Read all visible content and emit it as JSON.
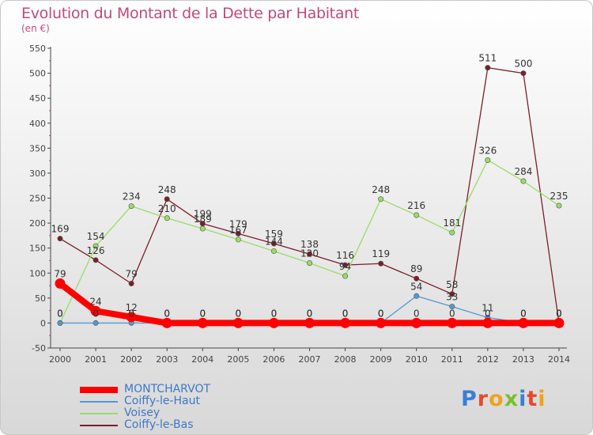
{
  "header": {
    "title": "Evolution du Montant de la Dette par Habitant",
    "subtitle": "(en €)"
  },
  "logo": {
    "text": "Proxiti",
    "colors": [
      "#3a7fd6",
      "#e64a2e",
      "#f0a21c",
      "#7bbf2e",
      "#3a7fd6",
      "#e64a2e",
      "#f0a21c"
    ]
  },
  "chart_data": {
    "type": "line",
    "x": [
      2000,
      2001,
      2002,
      2003,
      2004,
      2005,
      2006,
      2007,
      2008,
      2009,
      2010,
      2011,
      2012,
      2013,
      2014
    ],
    "ylim": [
      -50,
      550
    ],
    "yticks": [
      -50,
      0,
      50,
      100,
      150,
      200,
      250,
      300,
      350,
      400,
      450,
      500,
      550
    ],
    "grid": false,
    "legend": "bottom-left",
    "series": [
      {
        "name": "Coiffy-le-Bas",
        "color": "#7a1f2b",
        "values": [
          169,
          126,
          79,
          248,
          199,
          179,
          159,
          138,
          116,
          119,
          89,
          58,
          511,
          500,
          0
        ]
      },
      {
        "name": "Voisey",
        "color": "#99dd66",
        "values": [
          0,
          154,
          234,
          210,
          189,
          167,
          144,
          120,
          94,
          248,
          216,
          181,
          326,
          284,
          235
        ]
      },
      {
        "name": "Coiffy-le-Haut",
        "color": "#5599cc",
        "values": [
          0,
          0,
          0,
          0,
          0,
          0,
          0,
          0,
          0,
          0,
          54,
          33,
          11,
          0,
          0
        ]
      },
      {
        "name": "MONTCHARVOT",
        "color": "#ff0000",
        "values": [
          79,
          24,
          12,
          0,
          0,
          0,
          0,
          0,
          0,
          0,
          0,
          0,
          0,
          0,
          0
        ]
      }
    ]
  },
  "legend": {
    "items": [
      {
        "label": "MONTCHARVOT",
        "color": "#ff0000"
      },
      {
        "label": "Coiffy-le-Haut",
        "color": "#5599cc"
      },
      {
        "label": "Voisey",
        "color": "#99dd66"
      },
      {
        "label": "Coiffy-le-Bas",
        "color": "#7a1f2b"
      }
    ]
  }
}
